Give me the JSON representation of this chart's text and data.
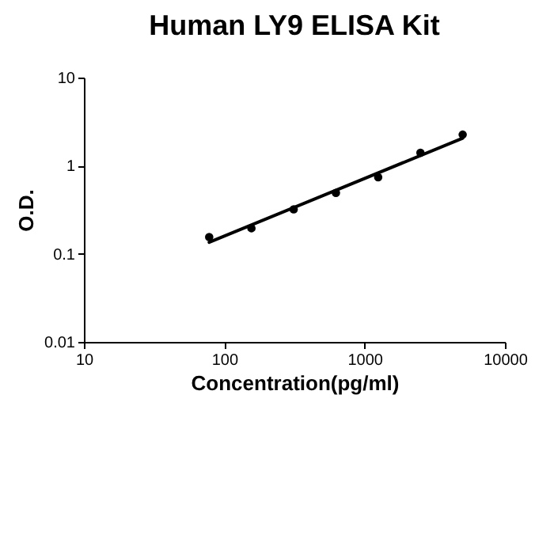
{
  "chart_data": {
    "type": "scatter",
    "title": "Human LY9 ELISA Kit",
    "xlabel": "Concentration(pg/ml)",
    "ylabel": "O.D.",
    "log": "xy",
    "xlim": [
      10,
      10000
    ],
    "ylim": [
      0.01,
      10
    ],
    "xticks": [
      10,
      100,
      1000,
      10000
    ],
    "yticks": [
      0.01,
      0.1,
      1,
      10
    ],
    "grid": false,
    "marker": "circle",
    "series": [
      {
        "color": "#000000",
        "x": [
          78.125,
          156.25,
          312.5,
          625,
          1250,
          2500,
          5000
        ],
        "values": [
          0.155,
          0.195,
          0.32,
          0.49,
          0.74,
          1.4,
          2.25
        ]
      },
      {
        "type": "line",
        "color": "#000000",
        "line_style": "solid",
        "marker": "none",
        "x": [
          78.125,
          5000
        ],
        "values": [
          0.135,
          2.05
        ]
      }
    ]
  }
}
